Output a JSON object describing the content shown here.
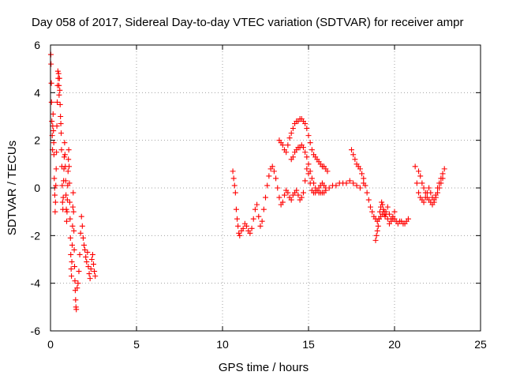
{
  "chart_data": {
    "type": "scatter",
    "title": "Day 058 of 2017, Sidereal Day-to-day VTEC variation (SDTVAR) for receiver ampr",
    "xlabel": "GPS time / hours",
    "ylabel": "SDTVAR / TECUs",
    "xlim": [
      0,
      25
    ],
    "ylim": [
      -6,
      6
    ],
    "xticks": [
      0,
      5,
      10,
      15,
      20,
      25
    ],
    "xtick_labels": [
      "0",
      "5",
      "10",
      "15",
      "20",
      "25"
    ],
    "yticks": [
      -6,
      -4,
      -2,
      0,
      2,
      4,
      6
    ],
    "ytick_labels": [
      "-6",
      "-4",
      "-2",
      "0",
      "2",
      "4",
      "6"
    ],
    "grid": true,
    "marker": "plus",
    "series": [
      {
        "name": "SDTVAR",
        "color": "#ff0000",
        "x": [
          0.02,
          0.03,
          0.05,
          0.06,
          0.08,
          0.1,
          0.12,
          0.13,
          0.15,
          0.17,
          0.19,
          0.2,
          0.22,
          0.24,
          0.25,
          0.27,
          0.29,
          0.31,
          0.33,
          0.35,
          0.37,
          0.39,
          0.41,
          0.43,
          0.45,
          0.47,
          0.49,
          0.5,
          0.52,
          0.54,
          0.56,
          0.58,
          0.6,
          0.62,
          0.64,
          0.66,
          0.68,
          0.7,
          0.72,
          0.74,
          0.76,
          0.78,
          0.8,
          0.82,
          0.84,
          0.86,
          0.88,
          0.9,
          0.92,
          0.94,
          0.96,
          0.98,
          1.0,
          1.02,
          1.04,
          1.06,
          1.08,
          1.1,
          1.12,
          1.14,
          1.16,
          1.18,
          1.2,
          1.22,
          1.24,
          1.26,
          1.28,
          1.3,
          1.32,
          1.34,
          1.36,
          1.38,
          1.4,
          1.42,
          1.44,
          1.46,
          1.48,
          1.5,
          1.55,
          1.6,
          1.65,
          1.7,
          1.75,
          1.8,
          1.85,
          1.9,
          1.95,
          2.0,
          2.05,
          2.1,
          2.15,
          2.2,
          2.25,
          2.3,
          2.35,
          2.4,
          2.45,
          2.5,
          2.55,
          2.6,
          10.6,
          10.65,
          10.7,
          10.75,
          10.8,
          10.85,
          10.9,
          10.95,
          11.0,
          11.1,
          11.2,
          11.3,
          11.4,
          11.5,
          11.6,
          11.7,
          11.8,
          11.9,
          12.0,
          12.1,
          12.2,
          12.3,
          12.4,
          12.5,
          12.6,
          12.7,
          12.8,
          12.9,
          13.0,
          13.1,
          13.2,
          13.3,
          13.4,
          13.5,
          13.6,
          13.7,
          13.8,
          13.9,
          14.0,
          14.1,
          14.2,
          14.3,
          14.4,
          14.5,
          14.6,
          14.7,
          14.8,
          14.9,
          15.0,
          15.1,
          15.2,
          15.3,
          15.4,
          15.5,
          15.6,
          15.7,
          15.8,
          15.9,
          16.0,
          13.3,
          13.4,
          13.5,
          13.6,
          13.7,
          13.8,
          13.9,
          14.0,
          14.1,
          14.2,
          14.3,
          14.4,
          14.5,
          14.6,
          14.7,
          14.8,
          14.9,
          15.0,
          15.1,
          15.2,
          15.3,
          15.4,
          15.5,
          15.6,
          15.7,
          15.8,
          15.9,
          16.0,
          16.1,
          14.0,
          14.1,
          14.2,
          14.3,
          14.4,
          14.5,
          14.6,
          14.7,
          14.8,
          14.9,
          15.0,
          15.1,
          15.2,
          15.3,
          15.4,
          15.5,
          15.6,
          15.7,
          15.8,
          15.9,
          16.0,
          16.2,
          16.4,
          16.6,
          16.8,
          17.0,
          17.2,
          17.4,
          17.6,
          17.8,
          18.0,
          18.2,
          17.5,
          17.6,
          17.7,
          17.8,
          17.9,
          18.0,
          18.1,
          18.2,
          18.3,
          18.4,
          18.5,
          18.6,
          18.7,
          18.8,
          18.9,
          19.0,
          19.1,
          19.2,
          19.3,
          19.4,
          19.5,
          19.6,
          19.7,
          19.8,
          19.9,
          20.0,
          20.1,
          20.2,
          20.3,
          20.4,
          20.5,
          20.6,
          20.7,
          20.8,
          18.9,
          18.95,
          19.0,
          19.05,
          19.1,
          19.15,
          19.2,
          19.25,
          19.3,
          19.35,
          19.4,
          19.45,
          19.5,
          19.6,
          19.7,
          19.8,
          19.9,
          20.0,
          21.2,
          21.3,
          21.4,
          21.5,
          21.6,
          21.7,
          21.8,
          21.9,
          22.0,
          22.1,
          22.2,
          22.3,
          22.4,
          22.5,
          22.6,
          22.7,
          22.8,
          22.9,
          21.4,
          21.5,
          21.6,
          21.7,
          21.8,
          21.9,
          22.0,
          22.1,
          22.2,
          22.3,
          22.4,
          22.5,
          22.6,
          22.7,
          22.8
        ],
        "y": [
          5.6,
          5.2,
          4.4,
          3.6,
          2.8,
          2.2,
          1.6,
          2.6,
          3.1,
          2.4,
          1.9,
          1.4,
          0.4,
          0.0,
          -0.3,
          -1.0,
          -0.6,
          0.1,
          0.8,
          1.5,
          2.6,
          3.6,
          4.3,
          4.9,
          4.6,
          4.8,
          4.3,
          3.9,
          4.6,
          4.1,
          3.5,
          3.0,
          2.7,
          2.3,
          1.6,
          0.9,
          0.1,
          -0.6,
          -0.9,
          -0.4,
          0.3,
          0.8,
          1.3,
          1.9,
          1.4,
          0.9,
          0.3,
          -0.3,
          -0.9,
          -1.4,
          -1.0,
          -0.5,
          0.1,
          0.7,
          1.2,
          1.6,
          0.9,
          0.2,
          -0.6,
          -1.3,
          -2.1,
          -2.8,
          -3.4,
          -3.7,
          -3.1,
          -2.4,
          -1.6,
          -0.8,
          -0.2,
          -1.0,
          -1.8,
          -2.6,
          -3.3,
          -3.9,
          -4.3,
          -4.7,
          -5.0,
          -5.1,
          -4.2,
          -4.0,
          -3.5,
          -2.8,
          -1.9,
          -1.2,
          -1.6,
          -2.1,
          -2.4,
          -2.6,
          -2.9,
          -3.1,
          -2.7,
          -3.3,
          -3.6,
          -3.8,
          -3.4,
          -3.0,
          -2.8,
          -3.2,
          -3.5,
          -3.7,
          0.7,
          0.4,
          0.1,
          -0.2,
          -0.9,
          -1.3,
          -1.6,
          -1.9,
          -2.0,
          -1.8,
          -1.7,
          -1.5,
          -1.6,
          -1.8,
          -1.9,
          -1.7,
          -1.3,
          -0.9,
          -0.7,
          -1.2,
          -1.6,
          -1.4,
          -0.9,
          -0.4,
          0.1,
          0.5,
          0.8,
          0.9,
          0.7,
          0.4,
          0.0,
          -0.4,
          -0.7,
          -0.6,
          -0.3,
          -0.1,
          -0.2,
          -0.4,
          -0.5,
          -0.3,
          -0.2,
          -0.1,
          -0.3,
          -0.5,
          -0.4,
          -0.2,
          0.3,
          0.8,
          0.6,
          0.2,
          -0.1,
          -0.2,
          -0.2,
          -0.1,
          0.0,
          0.1,
          0.2,
          0.1,
          0.0,
          2.0,
          1.9,
          1.8,
          1.6,
          1.5,
          1.8,
          2.1,
          2.3,
          2.5,
          2.7,
          2.8,
          2.8,
          2.9,
          2.9,
          2.8,
          2.7,
          2.5,
          2.2,
          1.9,
          1.6,
          1.4,
          1.3,
          1.2,
          1.1,
          1.0,
          0.9,
          0.9,
          0.8,
          0.7,
          1.2,
          1.3,
          1.5,
          1.6,
          1.7,
          1.7,
          1.8,
          1.7,
          1.5,
          1.3,
          1.0,
          0.7,
          0.4,
          0.2,
          0.0,
          -0.1,
          -0.2,
          -0.2,
          -0.2,
          -0.2,
          -0.1,
          0.0,
          0.1,
          0.1,
          0.2,
          0.2,
          0.2,
          0.3,
          0.2,
          0.1,
          0.0,
          0.2,
          1.6,
          1.4,
          1.2,
          1.0,
          0.9,
          0.8,
          0.6,
          0.4,
          0.1,
          -0.2,
          -0.5,
          -0.8,
          -1.0,
          -1.2,
          -1.3,
          -1.4,
          -1.3,
          -1.2,
          -1.1,
          -1.0,
          -1.1,
          -1.3,
          -1.5,
          -1.4,
          -1.3,
          -1.3,
          -1.4,
          -1.5,
          -1.4,
          -1.4,
          -1.5,
          -1.5,
          -1.4,
          -1.3,
          -2.2,
          -2.0,
          -1.8,
          -1.6,
          -1.3,
          -1.0,
          -0.8,
          -0.6,
          -0.7,
          -0.9,
          -1.1,
          -1.2,
          -1.0,
          -0.8,
          -1.1,
          -1.3,
          -1.2,
          -1.0,
          0.9,
          0.2,
          -0.2,
          -0.4,
          -0.5,
          -0.6,
          -0.4,
          -0.2,
          0.0,
          -0.2,
          -0.4,
          -0.5,
          -0.3,
          0.0,
          0.2,
          0.4,
          0.6,
          0.8,
          0.7,
          0.5,
          0.2,
          0.0,
          -0.2,
          -0.4,
          -0.5,
          -0.6,
          -0.7,
          -0.6,
          -0.4,
          -0.2,
          0.0,
          0.2,
          0.4
        ]
      }
    ]
  }
}
